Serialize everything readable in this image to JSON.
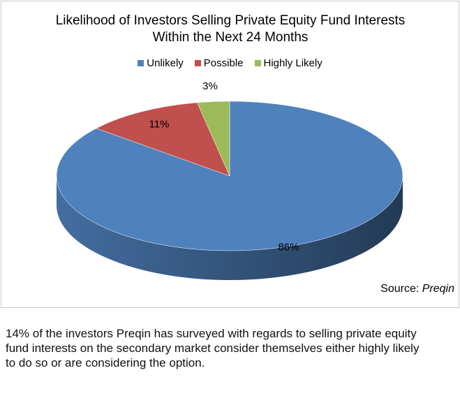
{
  "chart_data": {
    "type": "pie",
    "title": "Likelihood of Investors Selling Private Equity Fund Interests Within the Next 24 Months",
    "categories": [
      "Unlikely",
      "Possible",
      "Highly Likely"
    ],
    "values": [
      86,
      11,
      3
    ],
    "value_labels": [
      "86%",
      "11%",
      "3%"
    ],
    "colors": [
      "#4f81bd",
      "#c0504d",
      "#9bbb59"
    ],
    "legend": "top",
    "source_label": "Source:",
    "source": "Preqin"
  },
  "caption": "14% of the investors Preqin has surveyed with regards to selling private equity fund interests on the secondary market consider themselves either highly likely to do so or are considering the option."
}
